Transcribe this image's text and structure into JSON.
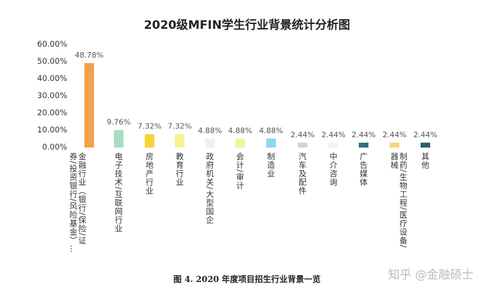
{
  "chart_data": {
    "type": "bar",
    "title": "2020级MFIN学生行业背景统计分析图",
    "categories": [
      "金融行业（银行/保险/证券/投资银行/风险基金）…",
      "电子技术/互联网行业",
      "房地产行业",
      "教育行业",
      "政府机关/大型国企",
      "会计/审计",
      "制造业",
      "汽车及配件",
      "中介咨询",
      "广告媒体",
      "制药/生物工程/医疗设备/器械",
      "其他"
    ],
    "values": [
      48.78,
      9.76,
      7.32,
      7.32,
      4.88,
      4.88,
      4.88,
      2.44,
      2.44,
      2.44,
      2.44,
      2.44
    ],
    "data_labels": [
      "48.78%",
      "9.76%",
      "7.32%",
      "7.32%",
      "4.88%",
      "4.88%",
      "4.88%",
      "2.44%",
      "2.44%",
      "2.44%",
      "2.44%",
      "2.44%"
    ],
    "colors": [
      "#f5a04a",
      "#a9dcc0",
      "#f5d33a",
      "#f6f28c",
      "#eef2ee",
      "#f7f0a0",
      "#8fd6ef",
      "#c8d8d0",
      "#f2f2ee",
      "#2f6f80",
      "#f7d27a",
      "#2f5c70"
    ],
    "yticks": [
      "0.00%",
      "10.00%",
      "20.00%",
      "30.00%",
      "40.00%",
      "50.00%",
      "60.00%"
    ],
    "ylim": [
      0,
      60
    ],
    "grid": false,
    "xlabel": "",
    "ylabel": ""
  },
  "caption": "图 4.    2020 年度项目招生行业背景一览",
  "watermark": "知乎 @金融硕士"
}
